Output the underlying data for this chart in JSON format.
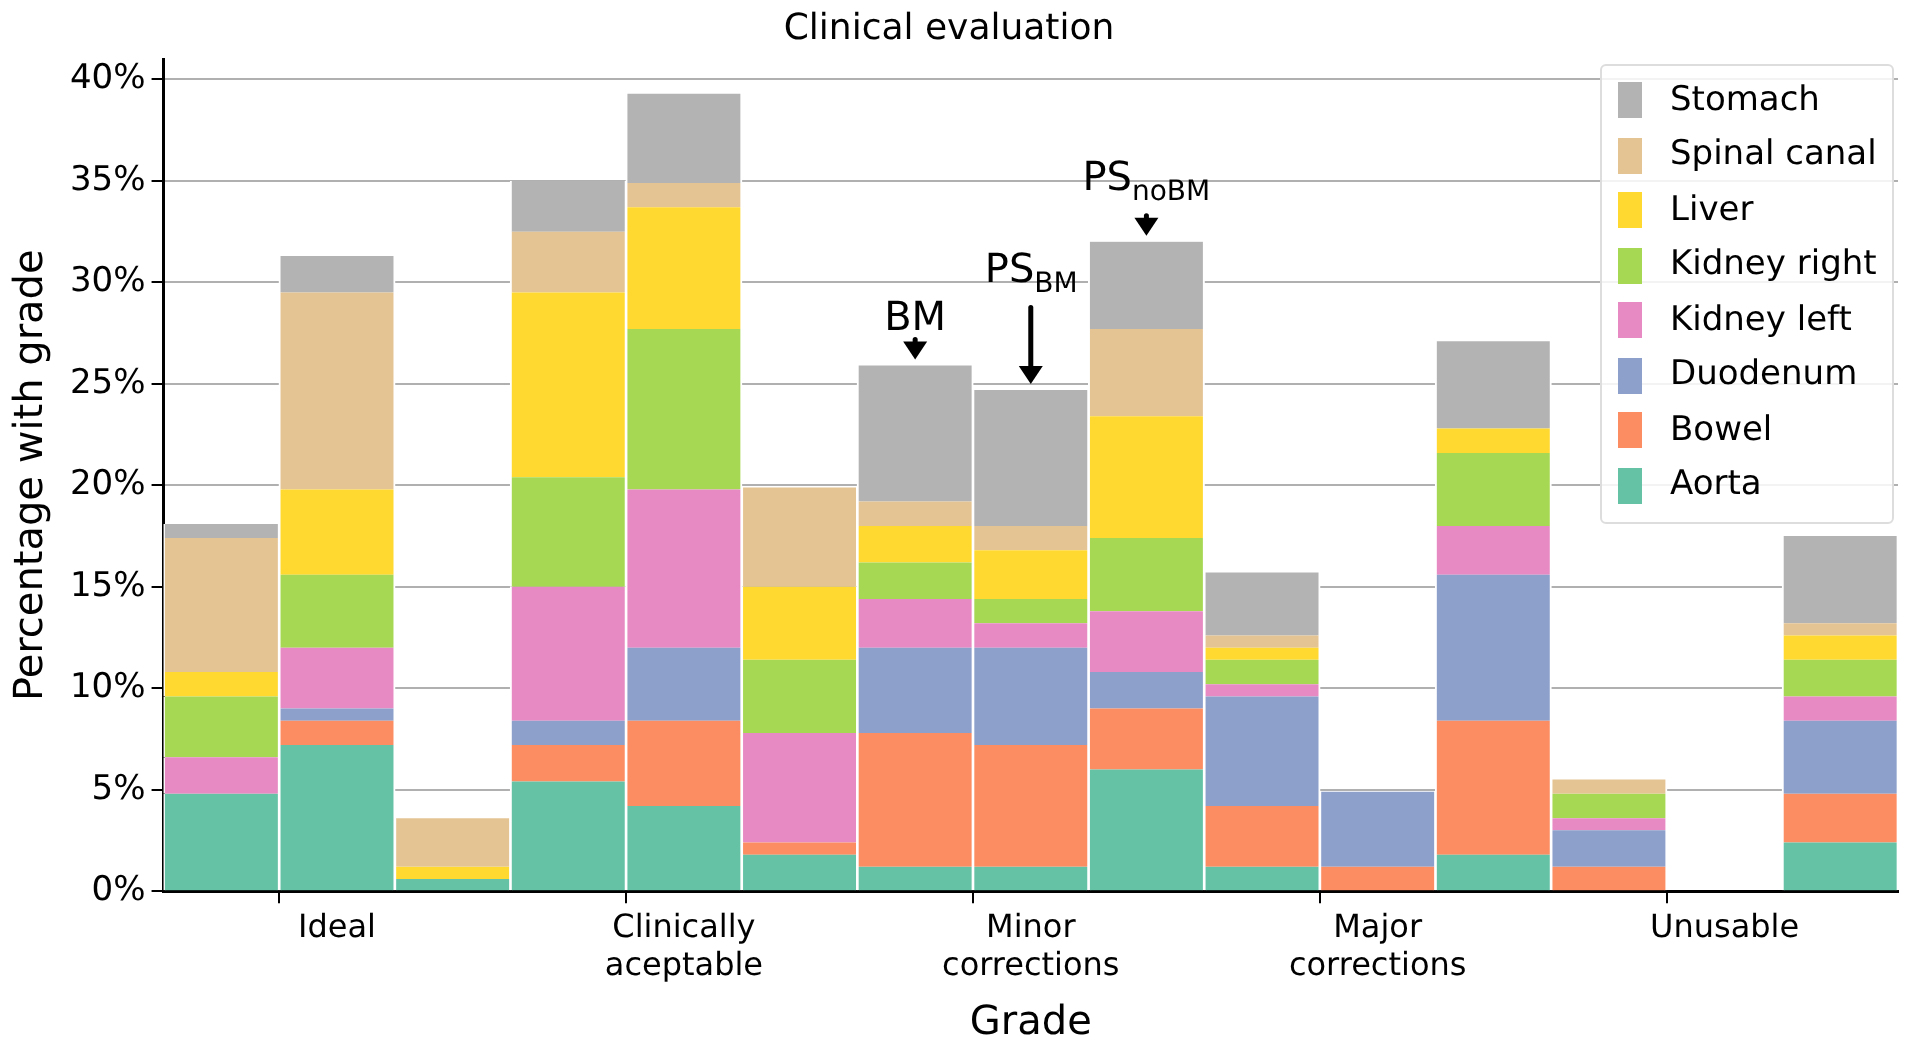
{
  "chart_data": {
    "type": "bar",
    "stacked": true,
    "title": "Clinical evaluation",
    "xlabel": "Grade",
    "ylabel": "Percentage with grade",
    "categories": [
      null,
      "Ideal",
      null,
      null,
      "Clinically aceptable",
      null,
      null,
      "Minor corrections",
      null,
      null,
      "Major corrections",
      null,
      null,
      "Unusable",
      null
    ],
    "series": [
      {
        "name": "Aorta",
        "color": "#66c2a5",
        "values": [
          4.8,
          7.2,
          0.6,
          5.4,
          4.2,
          1.8,
          1.2,
          1.2,
          6.0,
          1.2,
          0,
          1.8,
          0,
          0,
          2.4
        ]
      },
      {
        "name": "Bowel",
        "color": "#fc8d62",
        "values": [
          0,
          1.2,
          0,
          1.8,
          4.2,
          0.6,
          6.6,
          6.0,
          3.0,
          3.0,
          1.2,
          6.6,
          1.2,
          0,
          2.4
        ]
      },
      {
        "name": "Duodenum",
        "color": "#8da0cb",
        "values": [
          0,
          0.6,
          0,
          1.2,
          3.6,
          0,
          4.2,
          4.8,
          1.8,
          5.4,
          3.7,
          7.2,
          1.8,
          0,
          3.6
        ]
      },
      {
        "name": "Kidney left",
        "color": "#e78ac3",
        "values": [
          1.8,
          3.0,
          0,
          6.6,
          7.8,
          5.4,
          2.4,
          1.2,
          3.0,
          0.6,
          0,
          2.4,
          0.6,
          0,
          1.2
        ]
      },
      {
        "name": "Kidney right",
        "color": "#a6d854",
        "values": [
          3.0,
          3.6,
          0,
          5.4,
          7.9,
          3.6,
          1.8,
          1.2,
          3.6,
          1.2,
          0,
          3.6,
          1.2,
          0,
          1.8
        ]
      },
      {
        "name": "Liver",
        "color": "#ffd92f",
        "values": [
          1.2,
          4.2,
          0.6,
          9.1,
          6.0,
          3.6,
          1.8,
          2.4,
          6.0,
          0.6,
          0,
          1.2,
          0,
          0,
          1.2
        ]
      },
      {
        "name": "Spinal canal",
        "color": "#e5c494",
        "values": [
          6.6,
          9.7,
          2.4,
          3.0,
          1.2,
          4.9,
          1.2,
          1.2,
          4.3,
          0.6,
          0,
          0,
          0.7,
          0,
          0.6
        ]
      },
      {
        "name": "Stomach",
        "color": "#b3b3b3",
        "values": [
          0.7,
          1.8,
          0,
          2.5,
          4.4,
          0,
          6.7,
          6.7,
          4.3,
          3.1,
          0,
          4.3,
          0,
          0,
          4.3
        ]
      }
    ],
    "ylim": [
      0,
      41
    ],
    "yticks": [
      {
        "value": 0,
        "label": "0%"
      },
      {
        "value": 5,
        "label": "5%"
      },
      {
        "value": 10,
        "label": "10%"
      },
      {
        "value": 15,
        "label": "15%"
      },
      {
        "value": 20,
        "label": "20%"
      },
      {
        "value": 25,
        "label": "25%"
      },
      {
        "value": 30,
        "label": "30%"
      },
      {
        "value": 35,
        "label": "35%"
      },
      {
        "value": 40,
        "label": "40%"
      }
    ],
    "grid": "y",
    "legend": "top right",
    "annotations": [
      {
        "text": "BM",
        "y": 25.9
      },
      {
        "text": "PS$_{BM}$",
        "x": "Minor corrections",
        "y": 24.7
      },
      {
        "text": "PS$_{noBM}$",
        "y": 32.0
      }
    ]
  }
}
